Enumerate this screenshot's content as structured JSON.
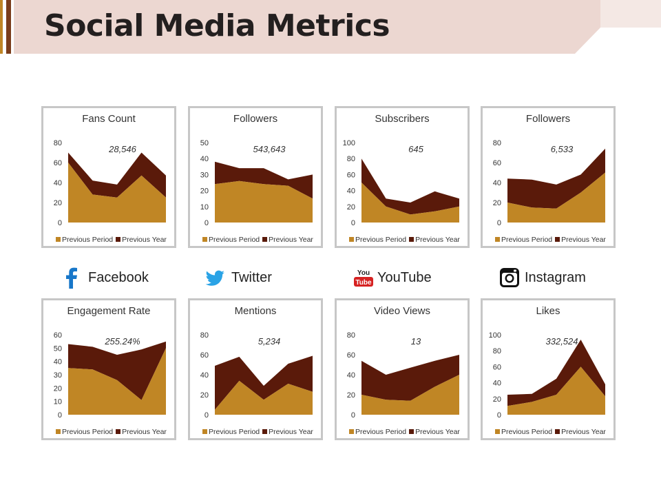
{
  "header": {
    "title": "Social Media Metrics"
  },
  "colors": {
    "previous_period": "#c08625",
    "previous_year": "#5a1a0a",
    "header_band": "#ecd7d1",
    "accent_bar": "#7a3d1a",
    "card_border": "#c7c7c7"
  },
  "platforms": [
    {
      "name": "Facebook",
      "icon": "facebook-icon"
    },
    {
      "name": "Twitter",
      "icon": "twitter-icon"
    },
    {
      "name": "YouTube",
      "icon": "youtube-icon",
      "icon_text_top": "You",
      "icon_text_bottom": "Tube"
    },
    {
      "name": "Instagram",
      "icon": "instagram-icon"
    }
  ],
  "legend": {
    "series1": "Previous Period",
    "series2": "Previous Year"
  },
  "chart_data": [
    {
      "type": "area",
      "stacked": true,
      "title": "Fans Count",
      "total": "28,546",
      "ylim": [
        0,
        80
      ],
      "yticks": [
        0,
        20,
        40,
        60,
        80
      ],
      "series": [
        {
          "name": "Previous Period",
          "values": [
            60,
            28,
            25,
            47,
            25
          ]
        },
        {
          "name": "Previous Year",
          "values": [
            10,
            14,
            13,
            23,
            22
          ]
        }
      ]
    },
    {
      "type": "area",
      "stacked": true,
      "title": "Followers",
      "total": "543,643",
      "ylim": [
        0,
        50
      ],
      "yticks": [
        0,
        10,
        20,
        30,
        40,
        50
      ],
      "series": [
        {
          "name": "Previous Period",
          "values": [
            24,
            26,
            24,
            23,
            15
          ]
        },
        {
          "name": "Previous Year",
          "values": [
            14,
            8,
            10,
            4,
            15
          ]
        }
      ]
    },
    {
      "type": "area",
      "stacked": true,
      "title": "Subscribers",
      "total": "645",
      "ylim": [
        0,
        100
      ],
      "yticks": [
        0,
        20,
        40,
        60,
        80,
        100
      ],
      "series": [
        {
          "name": "Previous Period",
          "values": [
            50,
            20,
            10,
            14,
            20
          ]
        },
        {
          "name": "Previous Year",
          "values": [
            30,
            10,
            15,
            25,
            10
          ]
        }
      ]
    },
    {
      "type": "area",
      "stacked": true,
      "title": "Followers",
      "total": "6,533",
      "ylim": [
        0,
        80
      ],
      "yticks": [
        0,
        20,
        40,
        60,
        80
      ],
      "series": [
        {
          "name": "Previous Period",
          "values": [
            20,
            15,
            14,
            30,
            50
          ]
        },
        {
          "name": "Previous Year",
          "values": [
            24,
            28,
            24,
            18,
            24
          ]
        }
      ]
    },
    {
      "type": "area",
      "stacked": true,
      "title": "Engagement Rate",
      "total": "255.24%",
      "ylim": [
        0,
        60
      ],
      "yticks": [
        0,
        10,
        20,
        30,
        40,
        50,
        60
      ],
      "series": [
        {
          "name": "Previous Period",
          "values": [
            35,
            34,
            26,
            11,
            50
          ]
        },
        {
          "name": "Previous Year",
          "values": [
            18,
            17,
            19,
            38,
            5
          ]
        }
      ]
    },
    {
      "type": "area",
      "stacked": true,
      "title": "Mentions",
      "total": "5,234",
      "ylim": [
        0,
        80
      ],
      "yticks": [
        0,
        20,
        40,
        60,
        80
      ],
      "series": [
        {
          "name": "Previous Period",
          "values": [
            5,
            34,
            15,
            31,
            23
          ]
        },
        {
          "name": "Previous Year",
          "values": [
            44,
            24,
            14,
            20,
            36
          ]
        }
      ]
    },
    {
      "type": "area",
      "stacked": true,
      "title": "Video Views",
      "total": "13",
      "ylim": [
        0,
        80
      ],
      "yticks": [
        0,
        20,
        40,
        60,
        80
      ],
      "series": [
        {
          "name": "Previous Period",
          "values": [
            20,
            15,
            14,
            28,
            40
          ]
        },
        {
          "name": "Previous Year",
          "values": [
            34,
            25,
            33,
            26,
            20
          ]
        }
      ]
    },
    {
      "type": "area",
      "stacked": true,
      "title": "Likes",
      "total": "332,524",
      "ylim": [
        0,
        100
      ],
      "yticks": [
        0,
        20,
        40,
        60,
        80,
        100
      ],
      "series": [
        {
          "name": "Previous Period",
          "values": [
            11,
            16,
            25,
            60,
            23
          ]
        },
        {
          "name": "Previous Year",
          "values": [
            14,
            10,
            20,
            34,
            15
          ]
        }
      ]
    }
  ]
}
